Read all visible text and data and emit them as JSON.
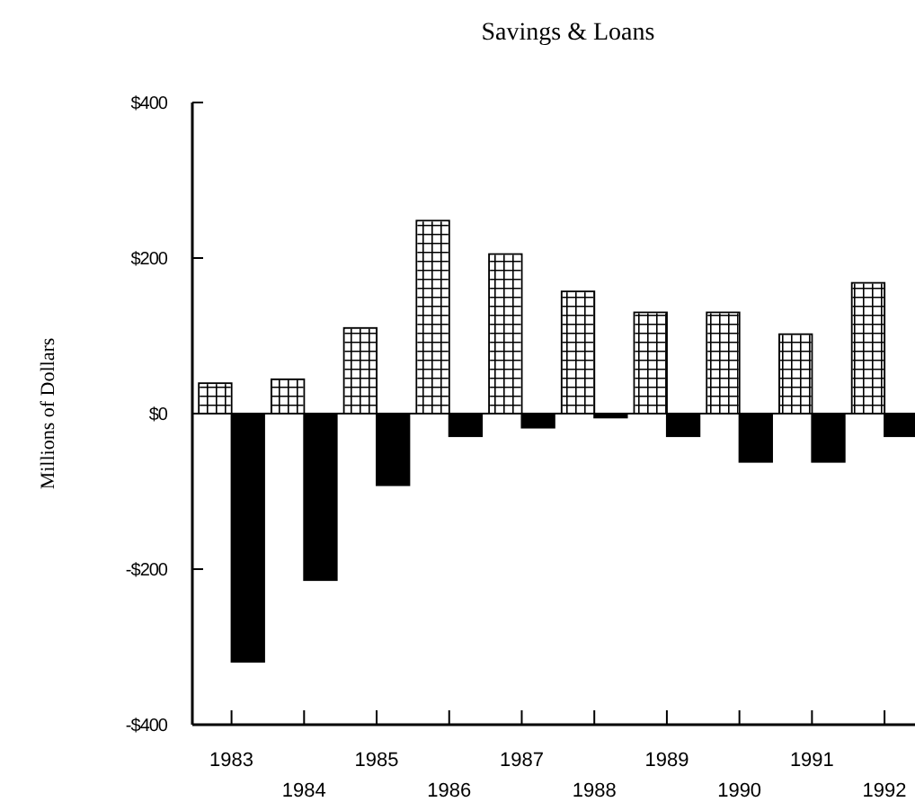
{
  "chart_data": {
    "type": "bar",
    "title": "Savings & Loans",
    "ylabel": "Millions of Dollars",
    "categories": [
      "1983",
      "1984",
      "1985",
      "1986",
      "1987",
      "1988",
      "1989",
      "1990",
      "1991",
      "1992"
    ],
    "series": [
      {
        "color": "#ffffff",
        "values": [
          39,
          44,
          110,
          248,
          205,
          157,
          130,
          130,
          102,
          168
        ]
      },
      {
        "color": "#000000",
        "values": [
          -319,
          -214,
          -92,
          -29,
          -18,
          -5,
          -29,
          -62,
          -62,
          -29
        ]
      }
    ],
    "ylim": [
      -400,
      400
    ],
    "yticks": [
      {
        "value": -400,
        "label": "-$400"
      },
      {
        "value": -200,
        "label": "-$200"
      },
      {
        "value": 0,
        "label": "$0"
      },
      {
        "value": 200,
        "label": "$200"
      },
      {
        "value": 400,
        "label": "$400"
      }
    ]
  }
}
